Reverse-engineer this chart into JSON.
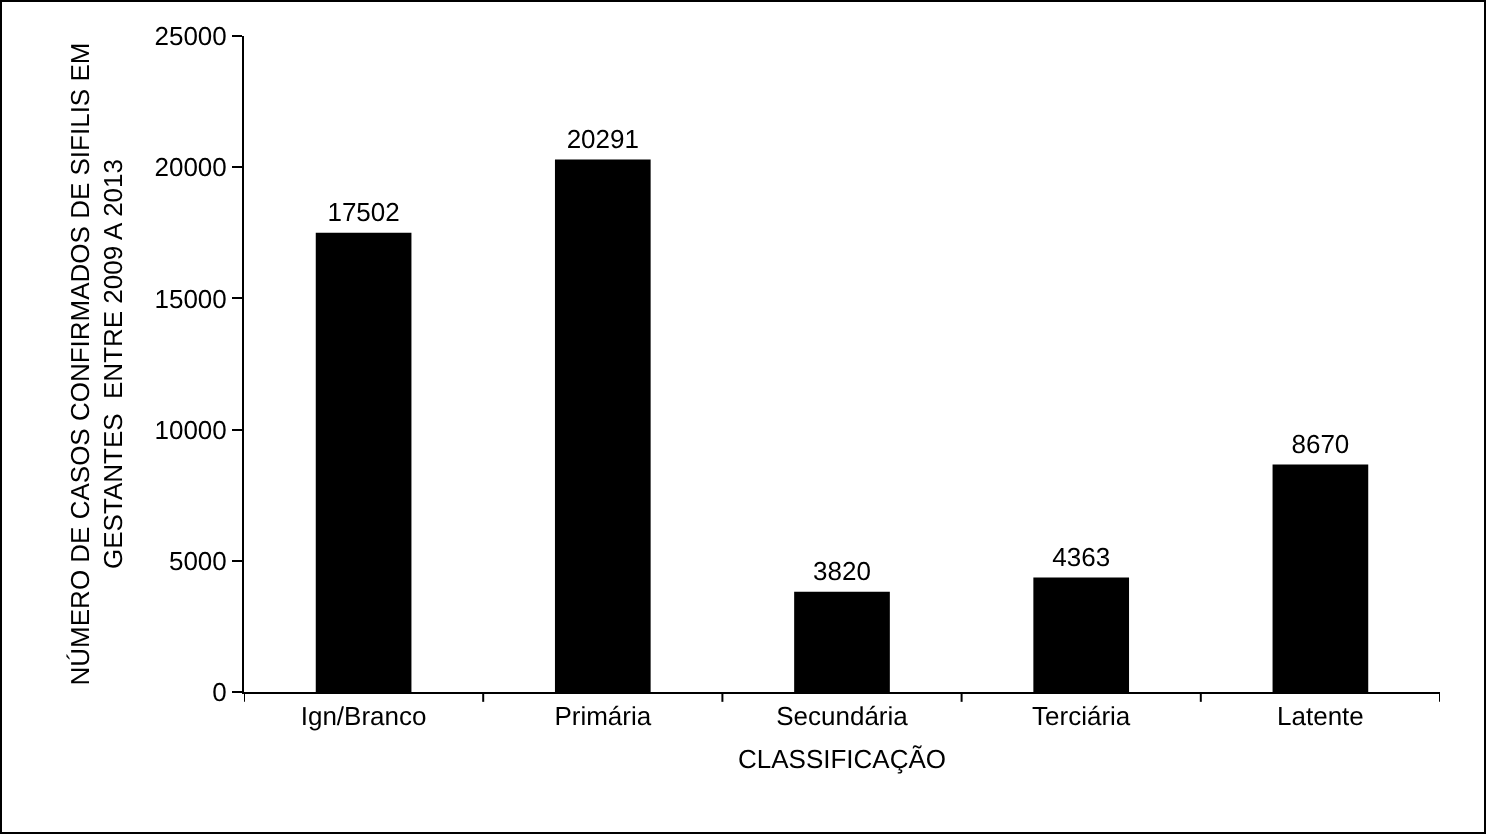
{
  "chart_data": {
    "type": "bar",
    "xlabel": "CLASSIFICAÇÃO",
    "ylabel": "NÚMERO DE CASOS CONFIRMADOS DE SIFILIS EM\nGESTANTES  ENTRE 2009 A 2013",
    "categories": [
      "Ign/Branco",
      "Primária",
      "Secundária",
      "Terciária",
      "Latente"
    ],
    "values": [
      17502,
      20291,
      3820,
      4363,
      8670
    ],
    "color": "#000000",
    "ylim": [
      0,
      25000
    ],
    "yticks": [
      0,
      5000,
      10000,
      15000,
      20000,
      25000
    ],
    "data_labels": true,
    "grid": false,
    "legend": false
  }
}
